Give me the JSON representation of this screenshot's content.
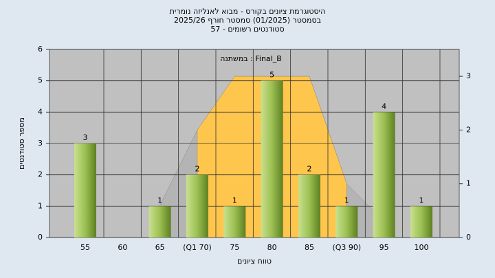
{
  "chart_data": {
    "type": "bar",
    "title": [
      "היסטוגרמת ציונים בקורס - מבוא לאנליזה נומרית",
      "בסמסטר (01/2025) סמסטר חורף 2025/26",
      "סטודנטים רשומים - 57"
    ],
    "annotation": "במשתנה : Final_B",
    "x_label": "טווח ציונים",
    "y_label": "מספר סטודנטים",
    "categories": [
      "55",
      "60",
      "65",
      "(Q1 70)",
      "75",
      "80",
      "85",
      "(Q3 90)",
      "95",
      "100"
    ],
    "values": [
      3,
      null,
      1,
      2,
      1,
      5,
      2,
      1,
      4,
      1
    ],
    "color": "#8fb24a",
    "area_series": [
      {
        "color": "#b4b4b4",
        "axis": "y2",
        "values": [
          null,
          null,
          0.6,
          2,
          3,
          3,
          3,
          1,
          0.3,
          null
        ]
      },
      {
        "color": "#ffc64d",
        "axis": "y2",
        "values": [
          null,
          null,
          null,
          2,
          3,
          3,
          3,
          1,
          null,
          null
        ]
      }
    ],
    "ylim": [
      0,
      6
    ],
    "yticks": [
      0,
      1,
      2,
      3,
      4,
      5,
      6
    ],
    "y2lim": [
      0,
      3.5
    ],
    "y2ticks": [
      0,
      1,
      2,
      3
    ],
    "grid": true
  }
}
